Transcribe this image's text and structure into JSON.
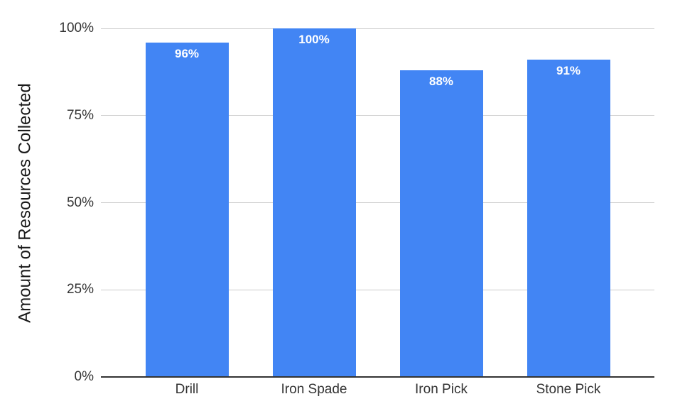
{
  "chart_data": {
    "type": "bar",
    "title": "",
    "xlabel": "",
    "ylabel": "Amount of Resources Collected",
    "categories": [
      "Drill",
      "Iron Spade",
      "Iron Pick",
      "Stone Pick"
    ],
    "values": [
      96,
      100,
      88,
      91
    ],
    "value_labels": [
      "96%",
      "100%",
      "88%",
      "91%"
    ],
    "ylim": [
      0,
      100
    ],
    "yticks": [
      {
        "value": 0,
        "label": "0%"
      },
      {
        "value": 25,
        "label": "25%"
      },
      {
        "value": 50,
        "label": "50%"
      },
      {
        "value": 75,
        "label": "75%"
      },
      {
        "value": 100,
        "label": "100%"
      }
    ],
    "grid": true,
    "legend_position": "none",
    "colors": {
      "bar": "#4285F4",
      "annotation_text": "#ffffff",
      "gridline": "#cccccc",
      "baseline": "#333333",
      "tick_text": "#333333",
      "category_text": "#333333",
      "axis_title_text": "#1a1a1a",
      "background": "#ffffff"
    }
  }
}
